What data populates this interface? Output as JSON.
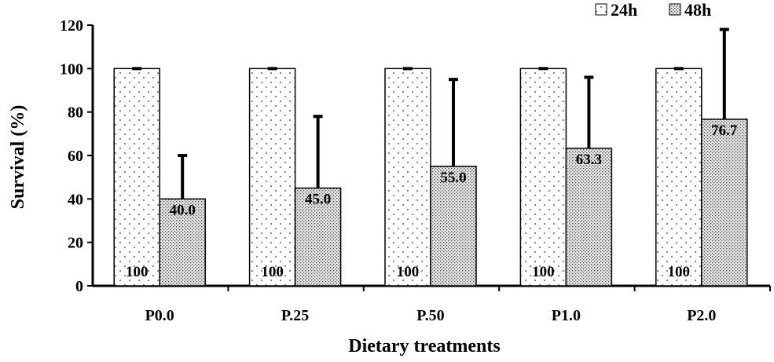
{
  "chart_data": {
    "type": "bar",
    "title": "",
    "xlabel": "Dietary treatments",
    "ylabel": "Survival (%)",
    "ylim": [
      0,
      120
    ],
    "yticks": [
      0,
      20,
      40,
      60,
      80,
      100,
      120
    ],
    "categories": [
      "P0.0",
      "P.25",
      "P.50",
      "P1.0",
      "P2.0"
    ],
    "series": [
      {
        "name": "24h",
        "values": [
          100,
          100,
          100,
          100,
          100
        ],
        "error_upper": [
          100,
          100,
          100,
          100,
          100
        ],
        "labels": [
          "100",
          "100",
          "100",
          "100",
          "100"
        ]
      },
      {
        "name": "48h",
        "values": [
          40.0,
          45.0,
          55.0,
          63.3,
          76.7
        ],
        "error_upper": [
          60,
          78,
          95,
          96,
          118
        ],
        "labels": [
          "40.0",
          "45.0",
          "55.0",
          "63.3",
          "76.7"
        ]
      }
    ],
    "legend_position": "top-right",
    "grid": false
  }
}
